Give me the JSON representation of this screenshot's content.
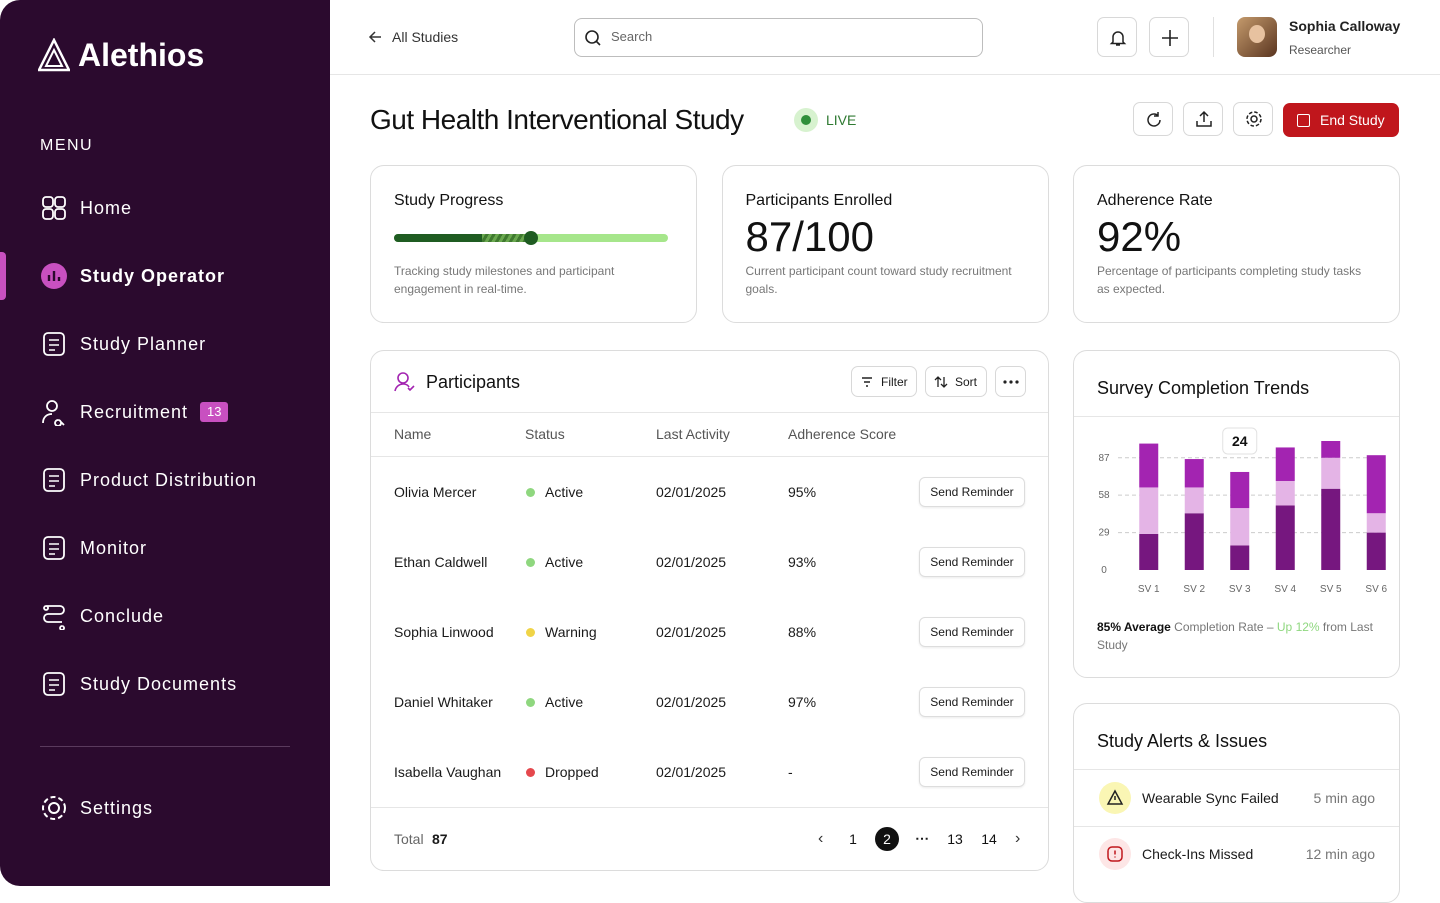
{
  "sidebar": {
    "brand": "Alethios",
    "menu_label": "MENU",
    "items": [
      {
        "label": "Home"
      },
      {
        "label": "Study Operator",
        "active": true
      },
      {
        "label": "Study Planner"
      },
      {
        "label": "Recruitment",
        "badge": 13
      },
      {
        "label": "Product Distribution"
      },
      {
        "label": "Monitor"
      },
      {
        "label": "Conclude"
      },
      {
        "label": "Study Documents"
      }
    ],
    "settings": "Settings"
  },
  "header": {
    "back": "All Studies",
    "search_placeholder": "Search",
    "user": {
      "name": "Sophia Calloway",
      "role": "Researcher"
    }
  },
  "study": {
    "title": "Gut Health Interventional Study",
    "status": "LIVE",
    "end_button": "End Study"
  },
  "cards": [
    {
      "title": "Study Progress",
      "progress": [
        32,
        18
      ],
      "description": "Tracking study milestones and participant engagement in real-time."
    },
    {
      "title": "Participants Enrolled",
      "value": "87/100",
      "description": "Current participant count toward study recruitment goals."
    },
    {
      "title": "Adherence Rate",
      "value": "92%",
      "description": "Percentage of participants completing study tasks as expected."
    }
  ],
  "participants": {
    "title": "Participants",
    "filter": "Filter",
    "sort": "Sort",
    "columns": [
      "Name",
      "Status",
      "Last Activity",
      "Adherence Score"
    ],
    "rows": [
      [
        "Olivia Mercer",
        "Active",
        "02/01/2025",
        "95%",
        "Send Reminder"
      ],
      [
        "Ethan Caldwell",
        "Active",
        "02/01/2025",
        "93%",
        "Send Reminder"
      ],
      [
        "Sophia Linwood",
        "Warning",
        "02/01/2025",
        "88%",
        "Send Reminder"
      ],
      [
        "Daniel Whitaker",
        "Active",
        "02/01/2025",
        "97%",
        "Send Reminder"
      ],
      [
        "Isabella Vaughan",
        "Dropped",
        "02/01/2025",
        "-",
        "Send Reminder"
      ]
    ],
    "status_colors": {
      "Active": "#8fd77f",
      "Warning": "#f0d447",
      "Dropped": "#e5484d"
    },
    "total_label": "Total",
    "total": 87,
    "pages": [
      1,
      2,
      13,
      14
    ],
    "current_page": 2
  },
  "chart_data": {
    "type": "bar",
    "stacked": true,
    "title": "Survey Completion Trends",
    "categories": [
      "SV 1",
      "SV 2",
      "SV 3",
      "SV 4",
      "SV 5",
      "SV 6"
    ],
    "series": [
      {
        "color": "#76177f",
        "values": [
          28,
          44,
          19,
          50,
          63,
          29
        ]
      },
      {
        "color": "#e4b4e6",
        "values": [
          36,
          20,
          29,
          19,
          24,
          15
        ]
      },
      {
        "color": "#a324b1",
        "values": [
          34,
          22,
          28,
          26,
          13,
          45
        ]
      }
    ],
    "ylim": [
      0,
      100
    ],
    "yticks": [
      0,
      29,
      58,
      87
    ],
    "grid": true,
    "annotations": [
      {
        "category": "SV 3",
        "text": 24
      }
    ],
    "footer": [
      {
        "text": "85% Average",
        "style": "bold"
      },
      {
        "text": " Completion Rate – ",
        "style": "muted"
      },
      {
        "text": "Up 12%",
        "style": "green"
      },
      {
        "text": " from Last Study",
        "style": "muted"
      }
    ]
  },
  "alerts": {
    "title": "Study Alerts & Issues",
    "items": [
      {
        "text": "Wearable Sync Failed",
        "time": "5 min ago",
        "level": "warning"
      },
      {
        "text": "Check-Ins Missed",
        "time": "12 min ago",
        "level": "error"
      }
    ]
  }
}
